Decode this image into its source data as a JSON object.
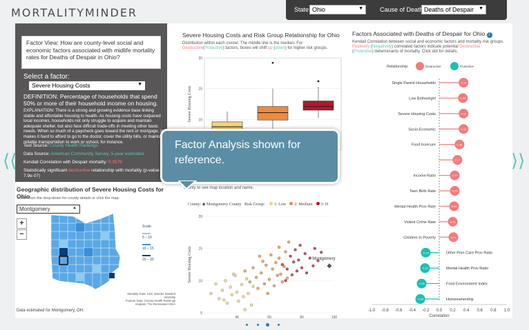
{
  "app": {
    "logo": "MORTALITYMINDER"
  },
  "selectors": {
    "state_label": "State:",
    "state_value": "Ohio",
    "cause_label": "Cause of Death:",
    "cause_value": "Deaths of Despair"
  },
  "factor_panel": {
    "question": "Factor View: How are county-level social and economic factors associated with midlife mortality rates for Deaths of Despair in Ohio?",
    "select_heading": "Select a factor:",
    "selected_factor": "Severe Housing Costs",
    "definition": "DEFINITION: Percentage of households that spend 50% or more of their household income on housing.",
    "explanation": "EXPLANATION: There is a strong and growing evidence base linking stable and affordable housing to health. As housing costs have outpaced local incomes, households not only struggle to acquire and maintain adequate shelter, but also face difficult trade-offs in meeting other basic needs. When so much of a paycheck goes toward the rent or mortgage, it makes it hard to afford to go to the doctor, cover the utility bills, or maintain reliable transportation to work or school, for instance.",
    "text_source_label": "Text Source:",
    "text_source_value": "County Health Rankings",
    "data_source_label": "Data Source:",
    "data_source_value": "American Community Survey, 5-year estimates",
    "kendall_label": "Kendall Correlation with Despair mortality:",
    "kendall_value": "0.3579",
    "sig_prefix": "Statistically significant",
    "sig_word": "destructive",
    "sig_suffix": "relationship with mortality (p-value = 7.9e-07)"
  },
  "geo": {
    "title": "Geographic distribution of Severe Housing Costs for Ohio",
    "subtitle": "Select from the drop-down for county details or click the map.",
    "county_select": "Montgomery",
    "zoom_in": "+",
    "zoom_out": "−",
    "scale_title": "Scale:",
    "scale_items": [
      "5 – 10",
      "10 – 15",
      "15 – 20"
    ],
    "scale_colors": [
      "#8ecbf0",
      "#3b8fd6",
      "#0e3a78"
    ],
    "attribution": [
      "Mortality Data: CDC Wonder Detailed Mortality",
      "Feature Data: County Health Rankings",
      "Analysis: The Rensselaer IDEA"
    ],
    "note": "Data estimated for Montgomery, OH."
  },
  "box_chart": {
    "title": "Severe Housing Costs and Risk Group Relationship for Ohio",
    "sub_part1": "Distribution within each cluster. The middle line is the median. For",
    "sub_destructive": "Destructive",
    "sub_open": "(",
    "sub_protective": "Protective",
    "sub_part2": ") factors, boxes will shift",
    "sub_up": "up",
    "sub_part3": "(",
    "sub_down": "down",
    "sub_part4": ") for higher risk groups.",
    "ylabel": "Severe Housing Costs"
  },
  "scatter_chart": {
    "sub": "county to see map location and name.",
    "county_label": "County:",
    "county_legend": "Montgomery County",
    "risk_label": "Risk Group:",
    "risk_groups": [
      "1: Low",
      "2: Medium",
      "3: H"
    ],
    "risk_colors": [
      "#f3d27a",
      "#f08a3a",
      "#b5162b"
    ],
    "county_tag": "Montgomery",
    "xlabel": "Midlife Mortality Rate (2015-2017)",
    "ylabel": "Severe Housing Costs"
  },
  "factor_chart": {
    "title": "Factors Associated with Deaths of Despair for Ohio",
    "info_icon": "info-icon",
    "sub_line1": "Kendall Correlation between social and economic factors and mortality risk groups.",
    "sub_positively": "Positively",
    "sub_open": "(",
    "sub_negatively": "Negatively",
    "sub_mid": ") correlated factors indicate potential",
    "sub_destructive": "Destructive",
    "sub_open2": "(",
    "sub_protective": "Protective",
    "sub_end": ") determinants of mortality. Click dot for details.",
    "legend_title": "Relationship",
    "legend_destructive": "Destructive",
    "legend_protective": "Protective",
    "xlabel": "Correlation",
    "xticks": [
      "-1.0",
      "-0.8",
      "-0.6",
      "-0.4",
      "-0.2",
      "0.0",
      "0.2",
      "0.4",
      "0.6",
      "0.8",
      "1.0"
    ],
    "destructive_color": "#f47a7c",
    "protective_color": "#1bbfb5"
  },
  "callout": {
    "text": "Factor Analysis shown for reference."
  },
  "nav": {
    "left_arrow": "⟨⟨",
    "right_arrow": "⟩⟩"
  },
  "chart_data": [
    {
      "type": "box",
      "title": "Severe Housing Costs and Risk Group Relationship for Ohio",
      "ylabel": "Severe Housing Costs",
      "ylim": [
        5,
        20
      ],
      "yticks": [
        5,
        10,
        15,
        20
      ],
      "groups": [
        {
          "name": "1: Low",
          "min": 7,
          "q1": 8.2,
          "median": 8.8,
          "q3": 9.6,
          "max": 11.3,
          "outliers": [
            4.5
          ]
        },
        {
          "name": "2: Medium",
          "min": 7,
          "q1": 9.9,
          "median": 11.1,
          "q3": 12.1,
          "max": 15,
          "outliers": [
            19.2
          ]
        },
        {
          "name": "3: High",
          "min": 10.2,
          "q1": 11.5,
          "median": 12.1,
          "q3": 13,
          "max": 15.3,
          "outliers": [
            16.2
          ]
        }
      ],
      "colors": [
        "#f3d27a",
        "#f08a3a",
        "#b5162b"
      ]
    },
    {
      "type": "scatter",
      "xlabel": "Midlife Mortality Rate (2015-2017)",
      "ylabel": "Severe Housing Costs",
      "xlim": [
        20,
        100
      ],
      "ylim": [
        5,
        20
      ],
      "xticks": [
        40,
        60,
        80,
        100
      ],
      "yticks": [
        5,
        10,
        15,
        20
      ],
      "series": [
        {
          "name": "1: Low",
          "points": [
            [
              24,
              8
            ],
            [
              27,
              9.5
            ],
            [
              29,
              7.2
            ],
            [
              31,
              8.5
            ],
            [
              33,
              10
            ],
            [
              34,
              6.5
            ],
            [
              36,
              9
            ],
            [
              37,
              7.8
            ],
            [
              38,
              11
            ],
            [
              40,
              8.2
            ],
            [
              41,
              6.8
            ],
            [
              43,
              9.4
            ],
            [
              44,
              7.5
            ],
            [
              46,
              10.3
            ],
            [
              47,
              8
            ],
            [
              49,
              6.2
            ],
            [
              50,
              9.1
            ],
            [
              45,
              5.5
            ],
            [
              39,
              10.8
            ],
            [
              32,
              7
            ]
          ]
        },
        {
          "name": "2: Medium",
          "points": [
            [
              45,
              11.5
            ],
            [
              48,
              9.8
            ],
            [
              50,
              12
            ],
            [
              52,
              10.5
            ],
            [
              53,
              8.8
            ],
            [
              55,
              11.2
            ],
            [
              56,
              13
            ],
            [
              57,
              9.5
            ],
            [
              58,
              12.4
            ],
            [
              60,
              10.2
            ],
            [
              61,
              14
            ],
            [
              62,
              11.8
            ],
            [
              63,
              9.2
            ],
            [
              64,
              12.8
            ],
            [
              65,
              10.8
            ],
            [
              66,
              13.5
            ],
            [
              67,
              11
            ],
            [
              68,
              9.8
            ],
            [
              69,
              12.2
            ],
            [
              70,
              14.5
            ],
            [
              71,
              10.4
            ],
            [
              72,
              16
            ],
            [
              54,
              13.8
            ],
            [
              59,
              8
            ],
            [
              66,
              15.2
            ]
          ]
        },
        {
          "name": "3: High",
          "points": [
            [
              68,
              12.5
            ],
            [
              71,
              11.8
            ],
            [
              73,
              13.8
            ],
            [
              74,
              10.9
            ],
            [
              75,
              12.9
            ],
            [
              76,
              14.8
            ],
            [
              77,
              11.5
            ],
            [
              78,
              13.2
            ],
            [
              79,
              15.5
            ],
            [
              80,
              12
            ],
            [
              82,
              14.2
            ],
            [
              83,
              11.2
            ],
            [
              85,
              13.5
            ],
            [
              87,
              12.3
            ],
            [
              88,
              15
            ],
            [
              90,
              13.1
            ],
            [
              92,
              14.4
            ],
            [
              70,
              10
            ]
          ]
        }
      ],
      "highlight": {
        "name": "Montgomery County",
        "x": 97,
        "y": 12.3
      }
    },
    {
      "type": "dot",
      "xlabel": "Correlation",
      "xlim": [
        -1,
        1
      ],
      "factors": [
        {
          "name": "Single Parent Households",
          "value": 0.36,
          "label": "0.36",
          "relationship": "Destructive"
        },
        {
          "name": "Low Birthweight",
          "value": 0.35,
          "label": "0.35",
          "relationship": "Destructive"
        },
        {
          "name": "Severe Housing Costs",
          "value": 0.36,
          "label": "0.36",
          "relationship": "Destructive"
        },
        {
          "name": "Socio-Economic",
          "value": 0.36,
          "label": "0.36",
          "relationship": "Destructive"
        },
        {
          "name": "Food Insecure",
          "value": 0.3,
          "label": "0.30",
          "relationship": "Destructive"
        },
        {
          "name": "",
          "value": 0.27,
          "label": "0.27",
          "relationship": "Destructive"
        },
        {
          "name": "Income Ratio",
          "value": 0.23,
          "label": "0.23",
          "relationship": "Destructive"
        },
        {
          "name": "Teen Birth Rate",
          "value": 0.23,
          "label": "0.23",
          "relationship": "Destructive"
        },
        {
          "name": "Mental Health Prov Rate",
          "value": 0.22,
          "label": "0.22",
          "relationship": "Destructive"
        },
        {
          "name": "Violent Crime Rate",
          "value": 0.2,
          "label": "0.20",
          "relationship": "Destructive"
        },
        {
          "name": "Children In Poverty",
          "value": 0.21,
          "label": "0.21",
          "relationship": "Destructive"
        },
        {
          "name": "Other Prim Care Prov Ratio",
          "value": -0.2,
          "label": "-0.20",
          "relationship": "Protective"
        },
        {
          "name": "Mental Health Prov Ratio",
          "value": -0.21,
          "label": "-0.21",
          "relationship": "Protective"
        },
        {
          "name": "Food Environment Index",
          "value": -0.26,
          "label": "-0.26",
          "relationship": "Protective"
        },
        {
          "name": "Homeownership",
          "value": -0.28,
          "label": "-0.28",
          "relationship": "Protective"
        }
      ]
    }
  ]
}
